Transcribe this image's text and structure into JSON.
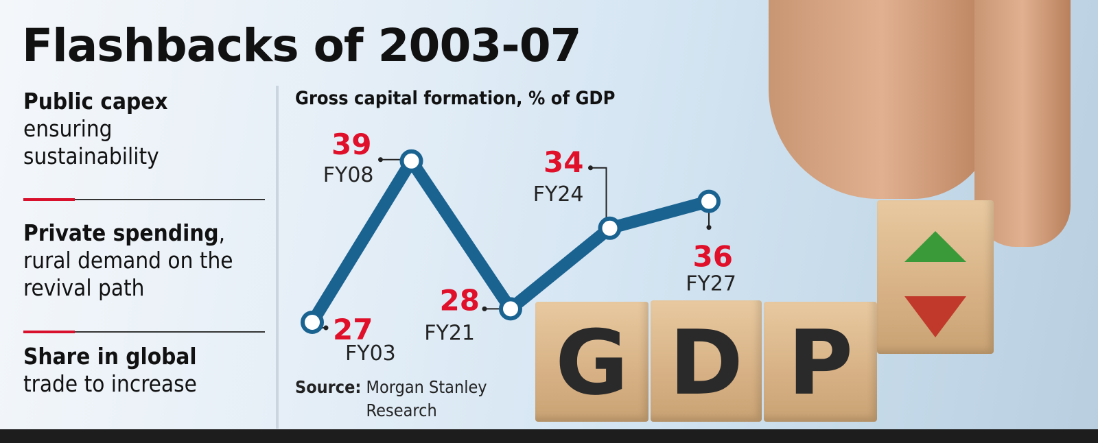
{
  "headline": "Flashbacks of 2003-07",
  "points": [
    {
      "bold": "Public capex",
      "rest": "ensuring sustainability"
    },
    {
      "bold": "Private spending",
      "rest": ", rural demand on the revival path"
    },
    {
      "bold": "Share in global",
      "rest": "trade to increase"
    }
  ],
  "source": {
    "label": "Source:",
    "text": "Morgan Stanley Research"
  },
  "image": {
    "blocks": [
      "G",
      "D",
      "P"
    ]
  },
  "colors": {
    "line": "#1a6391",
    "value": "#e0102a",
    "accent": "#d8102b"
  },
  "chart_data": {
    "type": "line",
    "title": "Gross capital formation, % of GDP",
    "categories": [
      "FY03",
      "FY08",
      "FY21",
      "FY24",
      "FY27"
    ],
    "values": [
      27,
      39,
      28,
      34,
      36
    ],
    "grid": false
  }
}
